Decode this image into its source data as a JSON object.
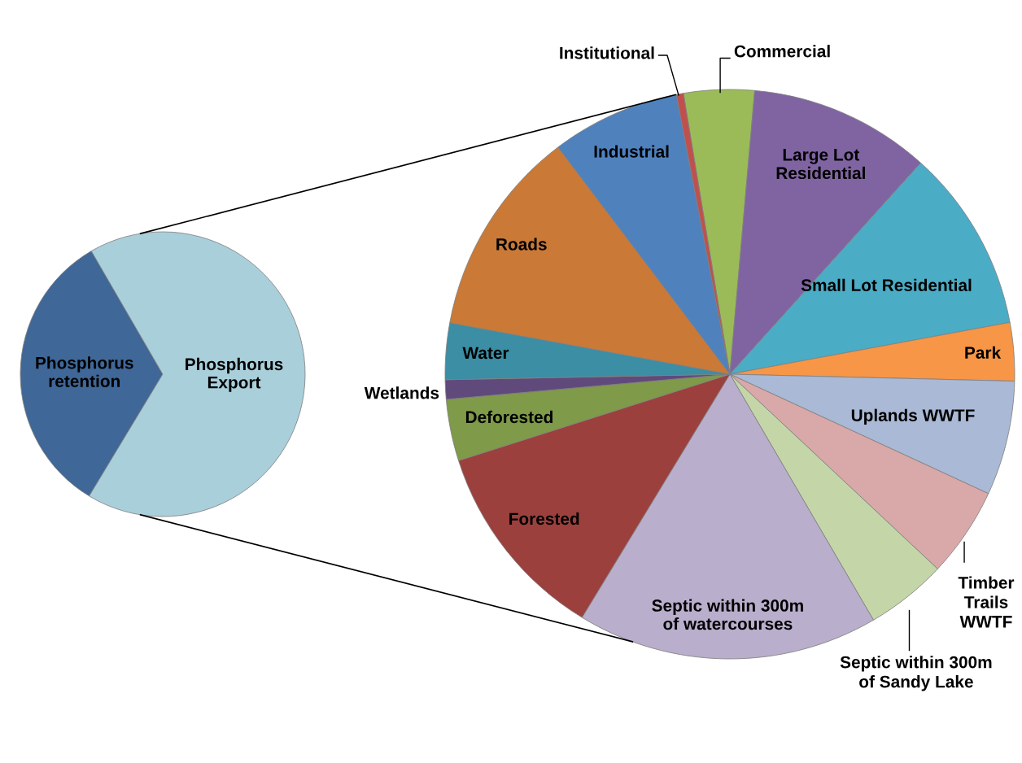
{
  "chart_data": [
    {
      "type": "pie",
      "categories": [
        "Phosphorus\nretention",
        "Phosphorus\nExport"
      ],
      "values": [
        33,
        67
      ],
      "colors": [
        "#3f6797",
        "#a9cfdb"
      ]
    },
    {
      "type": "pie",
      "categories": [
        "Commercial",
        "Large Lot\nResidential",
        "Small Lot Residential",
        "Park",
        "Uplands WWTF",
        "Timber\nTrails\nWWTF",
        "Septic within 300m\nof Sandy Lake",
        "Septic within 300m\nof watercourses",
        "Forested",
        "Deforested",
        "Wetlands",
        "Water",
        "Roads",
        "Industrial",
        "Institutional"
      ],
      "values": [
        4.0,
        10.3,
        10.4,
        3.3,
        6.5,
        5.1,
        4.6,
        17.1,
        11.4,
        3.5,
        1.1,
        3.2,
        11.8,
        7.3,
        0.4
      ],
      "colors": [
        "#9bbb59",
        "#8064a2",
        "#4bacc6",
        "#f79646",
        "#a9b9d6",
        "#d9a8a8",
        "#c4d6a8",
        "#b9aecb",
        "#9c403d",
        "#7f9a48",
        "#604a7b",
        "#3b8ea4",
        "#ca7937",
        "#4f81bd",
        "#c0504d"
      ]
    }
  ]
}
